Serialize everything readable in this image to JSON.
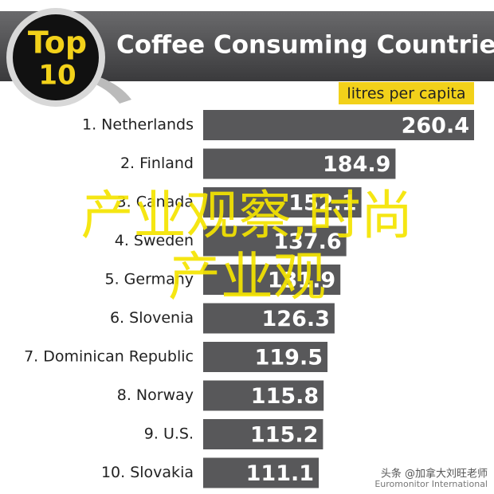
{
  "chart_data": {
    "type": "bar",
    "orientation": "horizontal",
    "badge": {
      "top": "Top",
      "number": "10"
    },
    "title": "Coffee Consuming Countries",
    "unit_label": "litres per capita",
    "categories": [
      "1. Netherlands",
      "2. Finland",
      "3. Canada",
      "4. Sweden",
      "5. Germany",
      "6. Slovenia",
      "7. Dominican Republic",
      "8. Norway",
      "9. U.S.",
      "10. Slovakia"
    ],
    "values": [
      260.4,
      184.9,
      152.1,
      137.6,
      131.9,
      126.3,
      119.5,
      115.8,
      115.2,
      111.1
    ],
    "color": "#58585a",
    "source": "Euromonitor International",
    "overlay": [
      "产业观察,时尚",
      "产业观"
    ],
    "watermark": "头条 @加拿大刘旺老师"
  }
}
